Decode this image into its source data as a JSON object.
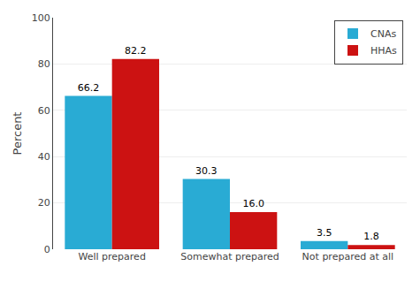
{
  "chart_data": {
    "type": "bar",
    "categories": [
      "Well prepared",
      "Somewhat prepared",
      "Not prepared at all"
    ],
    "series": [
      {
        "name": "CNAs",
        "color": "#29ABD4",
        "values": [
          66.2,
          30.3,
          3.5
        ],
        "value_labels": [
          "66.2",
          "30.3",
          "3.5"
        ]
      },
      {
        "name": "HHAs",
        "color": "#CC1212",
        "values": [
          82.2,
          16.0,
          1.8
        ],
        "value_labels": [
          "82.2",
          "16.0",
          "1.8"
        ]
      }
    ],
    "ylabel": "Percent",
    "ylim": [
      0,
      100
    ],
    "yticks": [
      0,
      20,
      40,
      60,
      80,
      100
    ],
    "grid": true,
    "legend": "upper right",
    "data_labels": true
  }
}
